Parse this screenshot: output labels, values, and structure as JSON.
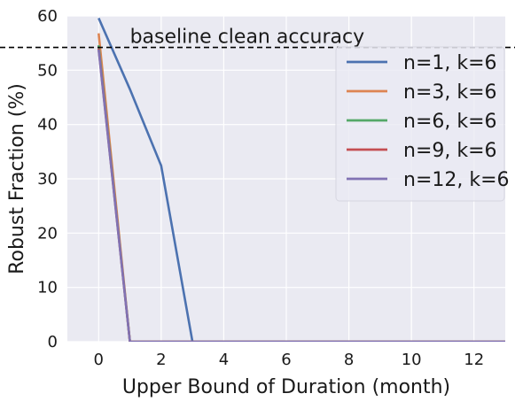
{
  "chart_data": {
    "type": "line",
    "title": "",
    "xlabel": "Upper Bound of Duration (month)",
    "ylabel": "Robust Fraction (%)",
    "xlim": [
      -1,
      13
    ],
    "ylim": [
      0,
      60
    ],
    "xticks": [
      0,
      2,
      4,
      6,
      8,
      10,
      12
    ],
    "yticks": [
      0,
      10,
      20,
      30,
      40,
      50,
      60
    ],
    "grid": true,
    "legend_position": "top-right",
    "baseline": {
      "label": "baseline clean accuracy",
      "value": 54.2,
      "style": "dashed",
      "color": "#000000"
    },
    "series": [
      {
        "name": "n=1, k=6",
        "color": "#4c72b0",
        "x": [
          0,
          1,
          2,
          3,
          4,
          5,
          6,
          7,
          8,
          9,
          10,
          11,
          12,
          13
        ],
        "values": [
          59.6,
          46.5,
          32.4,
          0,
          0,
          0,
          0,
          0,
          0,
          0,
          0,
          0,
          0,
          0
        ]
      },
      {
        "name": "n=3, k=6",
        "color": "#dd8452",
        "x": [
          0,
          1,
          2,
          3,
          4,
          5,
          6,
          7,
          8,
          9,
          10,
          11,
          12,
          13
        ],
        "values": [
          56.8,
          0,
          0,
          0,
          0,
          0,
          0,
          0,
          0,
          0,
          0,
          0,
          0,
          0
        ]
      },
      {
        "name": "n=6, k=6",
        "color": "#55a868",
        "x": [
          0,
          1,
          2,
          3,
          4,
          5,
          6,
          7,
          8,
          9,
          10,
          11,
          12,
          13
        ],
        "values": [
          54.6,
          0,
          0,
          0,
          0,
          0,
          0,
          0,
          0,
          0,
          0,
          0,
          0,
          0
        ]
      },
      {
        "name": "n=9, k=6",
        "color": "#c44e52",
        "x": [
          0,
          1,
          2,
          3,
          4,
          5,
          6,
          7,
          8,
          9,
          10,
          11,
          12,
          13
        ],
        "values": [
          54.0,
          0,
          0,
          0,
          0,
          0,
          0,
          0,
          0,
          0,
          0,
          0,
          0,
          0
        ]
      },
      {
        "name": "n=12, k=6",
        "color": "#8172b3",
        "x": [
          0,
          1,
          2,
          3,
          4,
          5,
          6,
          7,
          8,
          9,
          10,
          11,
          12,
          13
        ],
        "values": [
          53.8,
          0,
          0,
          0,
          0,
          0,
          0,
          0,
          0,
          0,
          0,
          0,
          0,
          0
        ]
      }
    ]
  }
}
